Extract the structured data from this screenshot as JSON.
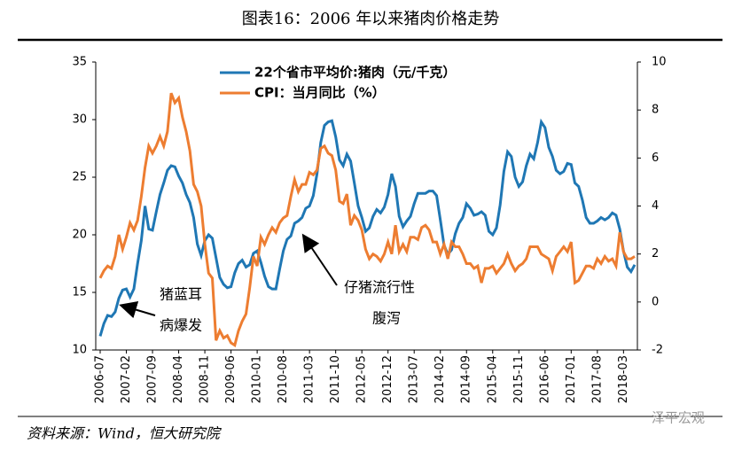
{
  "chart_data": {
    "type": "line",
    "title": "图表16：2006 年以来猪肉价格走势",
    "source": "资料来源：Wind，恒大研究院",
    "watermark": "泽平宏观",
    "annotations": [
      "猪蓝耳",
      "病爆发",
      "仔猪流行性",
      "腹泻"
    ],
    "categories": [
      "2006-07",
      null,
      null,
      null,
      null,
      null,
      null,
      "2007-02",
      null,
      null,
      null,
      null,
      null,
      null,
      "2007-09",
      null,
      null,
      null,
      null,
      null,
      null,
      "2008-04",
      null,
      null,
      null,
      null,
      null,
      null,
      "2008-11",
      null,
      null,
      null,
      null,
      null,
      null,
      "2009-06",
      null,
      null,
      null,
      null,
      null,
      null,
      "2010-01",
      null,
      null,
      null,
      null,
      null,
      null,
      "2010-08",
      null,
      null,
      null,
      null,
      null,
      null,
      "2011-03",
      null,
      null,
      null,
      null,
      null,
      null,
      "2011-10",
      null,
      null,
      null,
      null,
      null,
      null,
      "2012-05",
      null,
      null,
      null,
      null,
      null,
      null,
      "2012-12",
      null,
      null,
      null,
      null,
      null,
      null,
      "2013-07",
      null,
      null,
      null,
      null,
      null,
      null,
      "2014-02",
      null,
      null,
      null,
      null,
      null,
      null,
      "2014-09",
      null,
      null,
      null,
      null,
      null,
      null,
      "2015-04",
      null,
      null,
      null,
      null,
      null,
      null,
      "2015-11",
      null,
      null,
      null,
      null,
      null,
      null,
      "2016-06",
      null,
      null,
      null,
      null,
      null,
      null,
      "2017-01",
      null,
      null,
      null,
      null,
      null,
      null,
      "2017-08",
      null,
      null,
      null,
      null,
      null,
      null,
      "2018-03",
      null,
      null,
      null
    ],
    "series": [
      {
        "name": "22个省市平均价:猪肉（元/千克）",
        "color": "#1f77b4",
        "values": [
          11.2,
          12.3,
          13,
          12.9,
          13.3,
          14.5,
          15.2,
          15.3,
          14.6,
          15.3,
          17.5,
          19.5,
          22.5,
          20.5,
          20.4,
          22,
          23.5,
          24.5,
          25.6,
          26,
          25.9,
          25.1,
          24.5,
          23.5,
          22.8,
          21.5,
          19.2,
          18.2,
          19.5,
          20,
          19.7,
          18,
          16.3,
          15.7,
          15.4,
          15.5,
          16.7,
          17.5,
          17.8,
          17.2,
          17.4,
          18.4,
          18.6,
          17.6,
          16.4,
          15.5,
          15.3,
          15.3,
          17,
          18.6,
          19.6,
          19.9,
          21,
          21.2,
          21.5,
          22.3,
          22.5,
          23.4,
          25.3,
          28,
          29.5,
          29.8,
          29.9,
          28.5,
          26.5,
          26,
          27,
          26.4,
          24.5,
          22.5,
          21.5,
          20.3,
          20.6,
          21.6,
          22.2,
          21.9,
          22.4,
          23.5,
          25.3,
          24.2,
          21.6,
          20.7,
          21.2,
          21.6,
          22.7,
          23.6,
          23.6,
          23.6,
          23.8,
          23.8,
          23.4,
          21.3,
          19.1,
          18.3,
          18.7,
          20.1,
          21,
          21.5,
          22.7,
          22.3,
          21.7,
          21.8,
          22,
          21.7,
          20.3,
          20,
          20.6,
          22.6,
          25.5,
          27.2,
          26.8,
          25,
          24.2,
          24.6,
          26,
          27,
          26.6,
          28,
          29.8,
          29.3,
          27.6,
          26.8,
          25.6,
          25.3,
          25.5,
          26.2,
          26.1,
          24.5,
          24.2,
          23,
          21.5,
          21,
          21,
          21.2,
          21.5,
          21.3,
          21.5,
          21.9,
          21.7,
          20.5,
          18.6,
          17.2,
          16.8,
          17.4
        ]
      },
      {
        "name": "CPI：当月同比（%）",
        "color": "#ed7d31",
        "axis": "y2",
        "values": [
          1.0,
          1.3,
          1.5,
          1.4,
          1.9,
          2.8,
          2.2,
          2.7,
          3.3,
          3.0,
          3.4,
          4.4,
          5.6,
          6.5,
          6.2,
          6.5,
          6.9,
          6.5,
          7.1,
          8.7,
          8.3,
          8.5,
          7.7,
          7.1,
          6.3,
          4.9,
          4.6,
          4.0,
          2.4,
          1.2,
          1.0,
          -1.6,
          -1.2,
          -1.5,
          -1.4,
          -1.7,
          -1.8,
          -1.2,
          -0.8,
          -0.5,
          0.6,
          1.9,
          1.5,
          2.7,
          2.4,
          2.8,
          3.1,
          2.9,
          3.3,
          3.5,
          3.6,
          4.4,
          5.1,
          4.6,
          4.9,
          4.9,
          5.4,
          5.3,
          5.5,
          6.4,
          6.5,
          6.2,
          6.1,
          5.5,
          4.2,
          4.1,
          4.5,
          3.2,
          3.6,
          3.4,
          3.0,
          2.2,
          1.8,
          2.0,
          1.9,
          1.7,
          2.0,
          2.5,
          2.0,
          3.2,
          2.1,
          2.4,
          2.1,
          2.7,
          2.7,
          2.6,
          3.1,
          3.2,
          3.0,
          2.5,
          2.5,
          2.0,
          2.4,
          1.8,
          2.5,
          2.3,
          2.3,
          2.0,
          1.6,
          1.6,
          1.4,
          1.5,
          0.8,
          1.4,
          1.4,
          1.5,
          1.2,
          1.4,
          1.6,
          2.0,
          1.6,
          1.3,
          1.5,
          1.6,
          1.8,
          2.3,
          2.3,
          2.3,
          2.0,
          1.9,
          1.8,
          1.3,
          1.9,
          2.1,
          2.3,
          2.1,
          2.5,
          0.8,
          0.9,
          1.2,
          1.5,
          1.5,
          1.4,
          1.8,
          1.6,
          1.9,
          1.7,
          1.8,
          1.5,
          2.9,
          2.1,
          1.8,
          1.8,
          1.9
        ]
      }
    ],
    "ylim": [
      10,
      35
    ],
    "yticks": [
      10,
      15,
      20,
      25,
      30,
      35
    ],
    "y2lim": [
      -2,
      10
    ],
    "y2ticks": [
      -2,
      0,
      2,
      4,
      6,
      8,
      10
    ],
    "legend": "top"
  }
}
